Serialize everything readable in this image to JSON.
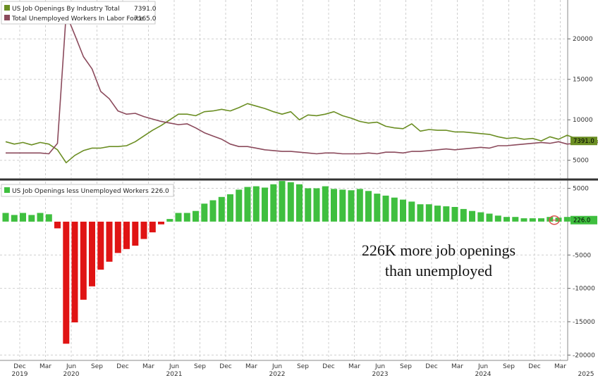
{
  "chart_data": [
    {
      "type": "line",
      "series": [
        {
          "name": "US Job Openings By Industry Total",
          "last_value": "7391.0",
          "color": "#6b8e23",
          "values": [
            7300,
            7000,
            7200,
            6900,
            7200,
            7000,
            6300,
            4700,
            5600,
            6200,
            6500,
            6500,
            6700,
            6700,
            6800,
            7300,
            8000,
            8700,
            9300,
            10000,
            10700,
            10700,
            10500,
            11000,
            11100,
            11300,
            11100,
            11500,
            12000,
            11700,
            11400,
            11000,
            10700,
            11000,
            10000,
            10600,
            10500,
            10700,
            11000,
            10500,
            10200,
            9800,
            9600,
            9700,
            9200,
            9000,
            8900,
            9500,
            8600,
            8800,
            8700,
            8700,
            8500,
            8500,
            8400,
            8300,
            8200,
            7900,
            7700,
            7800,
            7600,
            7700,
            7400,
            7900,
            7600,
            8100,
            7700,
            7600,
            7400,
            7391
          ]
        },
        {
          "name": "Total Unemployed Workers In Labor Force",
          "last_value": "7165.0",
          "color": "#8b4a5c",
          "values": [
            5900,
            5900,
            5900,
            5900,
            5900,
            5800,
            7100,
            23100,
            20500,
            17800,
            16300,
            13500,
            12600,
            11100,
            10700,
            10800,
            10400,
            10100,
            9800,
            9600,
            9400,
            9500,
            9000,
            8400,
            8000,
            7600,
            7000,
            6700,
            6700,
            6500,
            6300,
            6200,
            6100,
            6100,
            6000,
            5900,
            5800,
            5900,
            5900,
            5800,
            5800,
            5800,
            5900,
            5800,
            6000,
            6000,
            5900,
            6100,
            6100,
            6200,
            6300,
            6400,
            6300,
            6400,
            6500,
            6600,
            6500,
            6800,
            6800,
            6900,
            7000,
            7100,
            7200,
            7100,
            7300,
            7000,
            7100,
            7000,
            7200,
            7165
          ]
        }
      ],
      "ylim": [
        2800,
        24800
      ],
      "yticks": [
        "5000",
        "10000",
        "15000",
        "20000"
      ]
    },
    {
      "type": "bar",
      "series": [
        {
          "name": "US Job Openings less Unemployed Workers",
          "last_value": "226.0",
          "values": [
            1300,
            1000,
            1300,
            1000,
            1300,
            1100,
            -1000,
            -18300,
            -15100,
            -11700,
            -9700,
            -7200,
            -6000,
            -4700,
            -4100,
            -3600,
            -2600,
            -1600,
            -400,
            400,
            1300,
            1300,
            1600,
            2700,
            3200,
            3700,
            4100,
            4800,
            5200,
            5300,
            5100,
            5600,
            6100,
            5900,
            5600,
            5000,
            5000,
            5300,
            4900,
            4800,
            4700,
            4900,
            4600,
            4200,
            3900,
            3600,
            3300,
            3000,
            2600,
            2600,
            2400,
            2300,
            2200,
            1900,
            1600,
            1400,
            1200,
            900,
            700,
            700,
            500,
            500,
            500,
            700,
            600,
            700,
            800,
            600,
            400,
            226
          ],
          "positive_color": "#3fbf3f",
          "negative_color": "#e01414"
        }
      ],
      "ylim": [
        -20800,
        6000
      ],
      "yticks": [
        "5000",
        "-5000",
        "-10000",
        "-15000",
        "-20000"
      ],
      "annotation": [
        "226K more job openings",
        "than unemployed"
      ]
    }
  ],
  "x_axis": {
    "labels": [
      {
        "top": "Dec",
        "bottom": "2019"
      },
      {
        "top": "Mar",
        "bottom": ""
      },
      {
        "top": "Jun",
        "bottom": "2020"
      },
      {
        "top": "Sep",
        "bottom": ""
      },
      {
        "top": "Dec",
        "bottom": ""
      },
      {
        "top": "Mar",
        "bottom": ""
      },
      {
        "top": "Jun",
        "bottom": "2021"
      },
      {
        "top": "Sep",
        "bottom": ""
      },
      {
        "top": "Dec",
        "bottom": ""
      },
      {
        "top": "Mar",
        "bottom": ""
      },
      {
        "top": "Jun",
        "bottom": "2022"
      },
      {
        "top": "Sep",
        "bottom": ""
      },
      {
        "top": "Dec",
        "bottom": ""
      },
      {
        "top": "Mar",
        "bottom": ""
      },
      {
        "top": "Jun",
        "bottom": "2023"
      },
      {
        "top": "Sep",
        "bottom": ""
      },
      {
        "top": "Dec",
        "bottom": ""
      },
      {
        "top": "Mar",
        "bottom": ""
      },
      {
        "top": "Jun",
        "bottom": "2024"
      },
      {
        "top": "Sep",
        "bottom": ""
      },
      {
        "top": "Dec",
        "bottom": ""
      },
      {
        "top": "Mar",
        "bottom": ""
      },
      {
        "top": "",
        "bottom": "2025"
      }
    ]
  }
}
